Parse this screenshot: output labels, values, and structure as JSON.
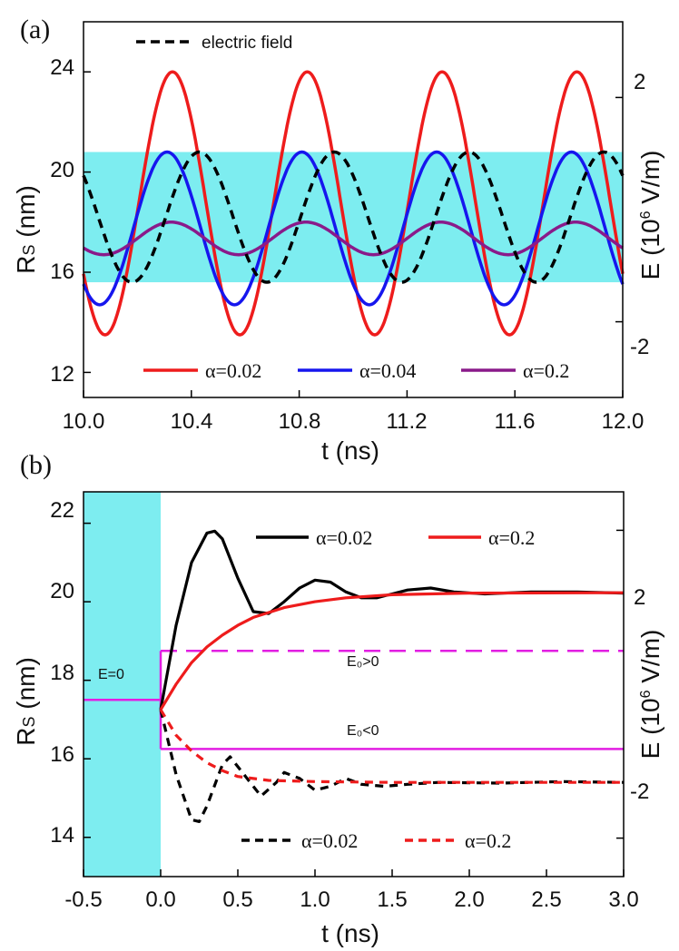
{
  "chart_data": [
    {
      "panel_label": "(a)",
      "type": "line",
      "xlabel": "t (ns)",
      "ylabel": "Rs (nm)",
      "ylabel_right": "E (10^6 V/m)",
      "ylabel_parts": {
        "main": "R",
        "sub": "S",
        "unit": " (nm)"
      },
      "ylabel_right_parts": {
        "pre": "E (10",
        "sup": "6",
        "post": " V/m)"
      },
      "xlim": [
        10.0,
        12.0
      ],
      "ylim": [
        11.0,
        26.0
      ],
      "ylim_right": [
        -3.35,
        3.35
      ],
      "xticks": [
        "10.0",
        "10.4",
        "10.8",
        "11.2",
        "11.6",
        "12.0"
      ],
      "yticks": [
        "12",
        "16",
        "20",
        "24"
      ],
      "yticks_right": [
        "-2",
        "2"
      ],
      "shaded_band": {
        "y_from": 15.6,
        "y_to": 20.8,
        "color": "#7dedf0"
      },
      "period_ns": 0.5,
      "series": [
        {
          "name": "α=0.02",
          "color": "#ee1c1c",
          "dash": "solid",
          "mean": 18.75,
          "amplitude": 5.25,
          "peak_t": 10.33
        },
        {
          "name": "α=0.04",
          "color": "#1616ee",
          "dash": "solid",
          "mean": 17.75,
          "amplitude": 3.05,
          "peak_t": 10.31
        },
        {
          "name": "α=0.2",
          "color": "#8a1a8a",
          "dash": "solid",
          "mean": 17.35,
          "amplitude": 0.65,
          "peak_t": 10.325
        },
        {
          "name": "electric field",
          "color": "#000000",
          "dash": "dashed",
          "mean": 18.2,
          "amplitude": 2.6,
          "peak_t": 10.43
        }
      ],
      "legend_top": "electric field",
      "legend_bottom": [
        "α=0.02",
        "α=0.04",
        "α=0.2"
      ]
    },
    {
      "panel_label": "(b)",
      "type": "line",
      "xlabel": "t (ns)",
      "ylabel": "Rs (nm)",
      "ylabel_right": "E (10^6 V/m)",
      "ylabel_parts": {
        "main": "R",
        "sub": "S",
        "unit": " (nm)"
      },
      "ylabel_right_parts": {
        "pre": "E (10",
        "sup": "6",
        "post": " V/m)"
      },
      "xlim": [
        -0.5,
        3.0
      ],
      "ylim": [
        13.0,
        22.8
      ],
      "ylim_right": [
        -2.5,
        2.5
      ],
      "xticks": [
        "-0.5",
        "0.0",
        "0.5",
        "1.0",
        "1.5",
        "2.0",
        "2.5",
        "3.0"
      ],
      "yticks": [
        "14",
        "16",
        "18",
        "20",
        "22"
      ],
      "yticks_right": [
        "-2",
        "2"
      ],
      "shaded_region": {
        "x_from": -0.5,
        "x_to": 0.0,
        "color": "#7dedf0"
      },
      "series": [
        {
          "name": "α=0.02",
          "color": "#000000",
          "dash": "solid",
          "points": [
            [
              0,
              17.25
            ],
            [
              0.1,
              19.4
            ],
            [
              0.2,
              21.0
            ],
            [
              0.3,
              21.75
            ],
            [
              0.35,
              21.8
            ],
            [
              0.4,
              21.6
            ],
            [
              0.5,
              20.6
            ],
            [
              0.6,
              19.75
            ],
            [
              0.7,
              19.7
            ],
            [
              0.8,
              20.0
            ],
            [
              0.9,
              20.35
            ],
            [
              1.0,
              20.55
            ],
            [
              1.1,
              20.5
            ],
            [
              1.2,
              20.25
            ],
            [
              1.3,
              20.1
            ],
            [
              1.4,
              20.1
            ],
            [
              1.5,
              20.2
            ],
            [
              1.6,
              20.3
            ],
            [
              1.75,
              20.35
            ],
            [
              1.9,
              20.25
            ],
            [
              2.1,
              20.2
            ],
            [
              2.4,
              20.25
            ],
            [
              2.7,
              20.25
            ],
            [
              3.0,
              20.22
            ]
          ]
        },
        {
          "name": "α=0.2",
          "color": "#ee1c1c",
          "dash": "solid",
          "points": [
            [
              0,
              17.25
            ],
            [
              0.1,
              17.9
            ],
            [
              0.2,
              18.45
            ],
            [
              0.3,
              18.85
            ],
            [
              0.4,
              19.15
            ],
            [
              0.5,
              19.4
            ],
            [
              0.6,
              19.6
            ],
            [
              0.8,
              19.85
            ],
            [
              1.0,
              20.0
            ],
            [
              1.2,
              20.1
            ],
            [
              1.5,
              20.18
            ],
            [
              2.0,
              20.22
            ],
            [
              3.0,
              20.23
            ]
          ]
        },
        {
          "name": "α=0.02",
          "color": "#000000",
          "dash": "dashed",
          "points": [
            [
              0,
              17.25
            ],
            [
              0.1,
              15.6
            ],
            [
              0.2,
              14.45
            ],
            [
              0.25,
              14.4
            ],
            [
              0.3,
              14.8
            ],
            [
              0.4,
              15.85
            ],
            [
              0.45,
              16.05
            ],
            [
              0.55,
              15.55
            ],
            [
              0.65,
              15.05
            ],
            [
              0.75,
              15.4
            ],
            [
              0.8,
              15.65
            ],
            [
              0.9,
              15.5
            ],
            [
              1.0,
              15.2
            ],
            [
              1.1,
              15.3
            ],
            [
              1.2,
              15.5
            ],
            [
              1.3,
              15.35
            ],
            [
              1.45,
              15.3
            ],
            [
              1.6,
              15.35
            ],
            [
              1.8,
              15.4
            ],
            [
              2.2,
              15.38
            ],
            [
              2.6,
              15.42
            ],
            [
              3.0,
              15.4
            ]
          ]
        },
        {
          "name": "α=0.2",
          "color": "#ee1c1c",
          "dash": "dashed",
          "points": [
            [
              0,
              17.25
            ],
            [
              0.1,
              16.6
            ],
            [
              0.2,
              16.2
            ],
            [
              0.3,
              15.9
            ],
            [
              0.4,
              15.7
            ],
            [
              0.5,
              15.55
            ],
            [
              0.7,
              15.45
            ],
            [
              1.0,
              15.42
            ],
            [
              1.5,
              15.4
            ],
            [
              2.0,
              15.4
            ],
            [
              3.0,
              15.4
            ]
          ]
        }
      ],
      "field_lines": {
        "color": "#e21ee2",
        "zero_level": 17.5,
        "positive_level": 18.75,
        "negative_level": 16.25,
        "labels": {
          "zero": "E=0",
          "positive": "E₀>0",
          "negative": "E₀<0"
        }
      },
      "legend_top": [
        "α=0.02",
        "α=0.2"
      ],
      "legend_bottom": [
        "α=0.02",
        "α=0.2"
      ]
    }
  ]
}
